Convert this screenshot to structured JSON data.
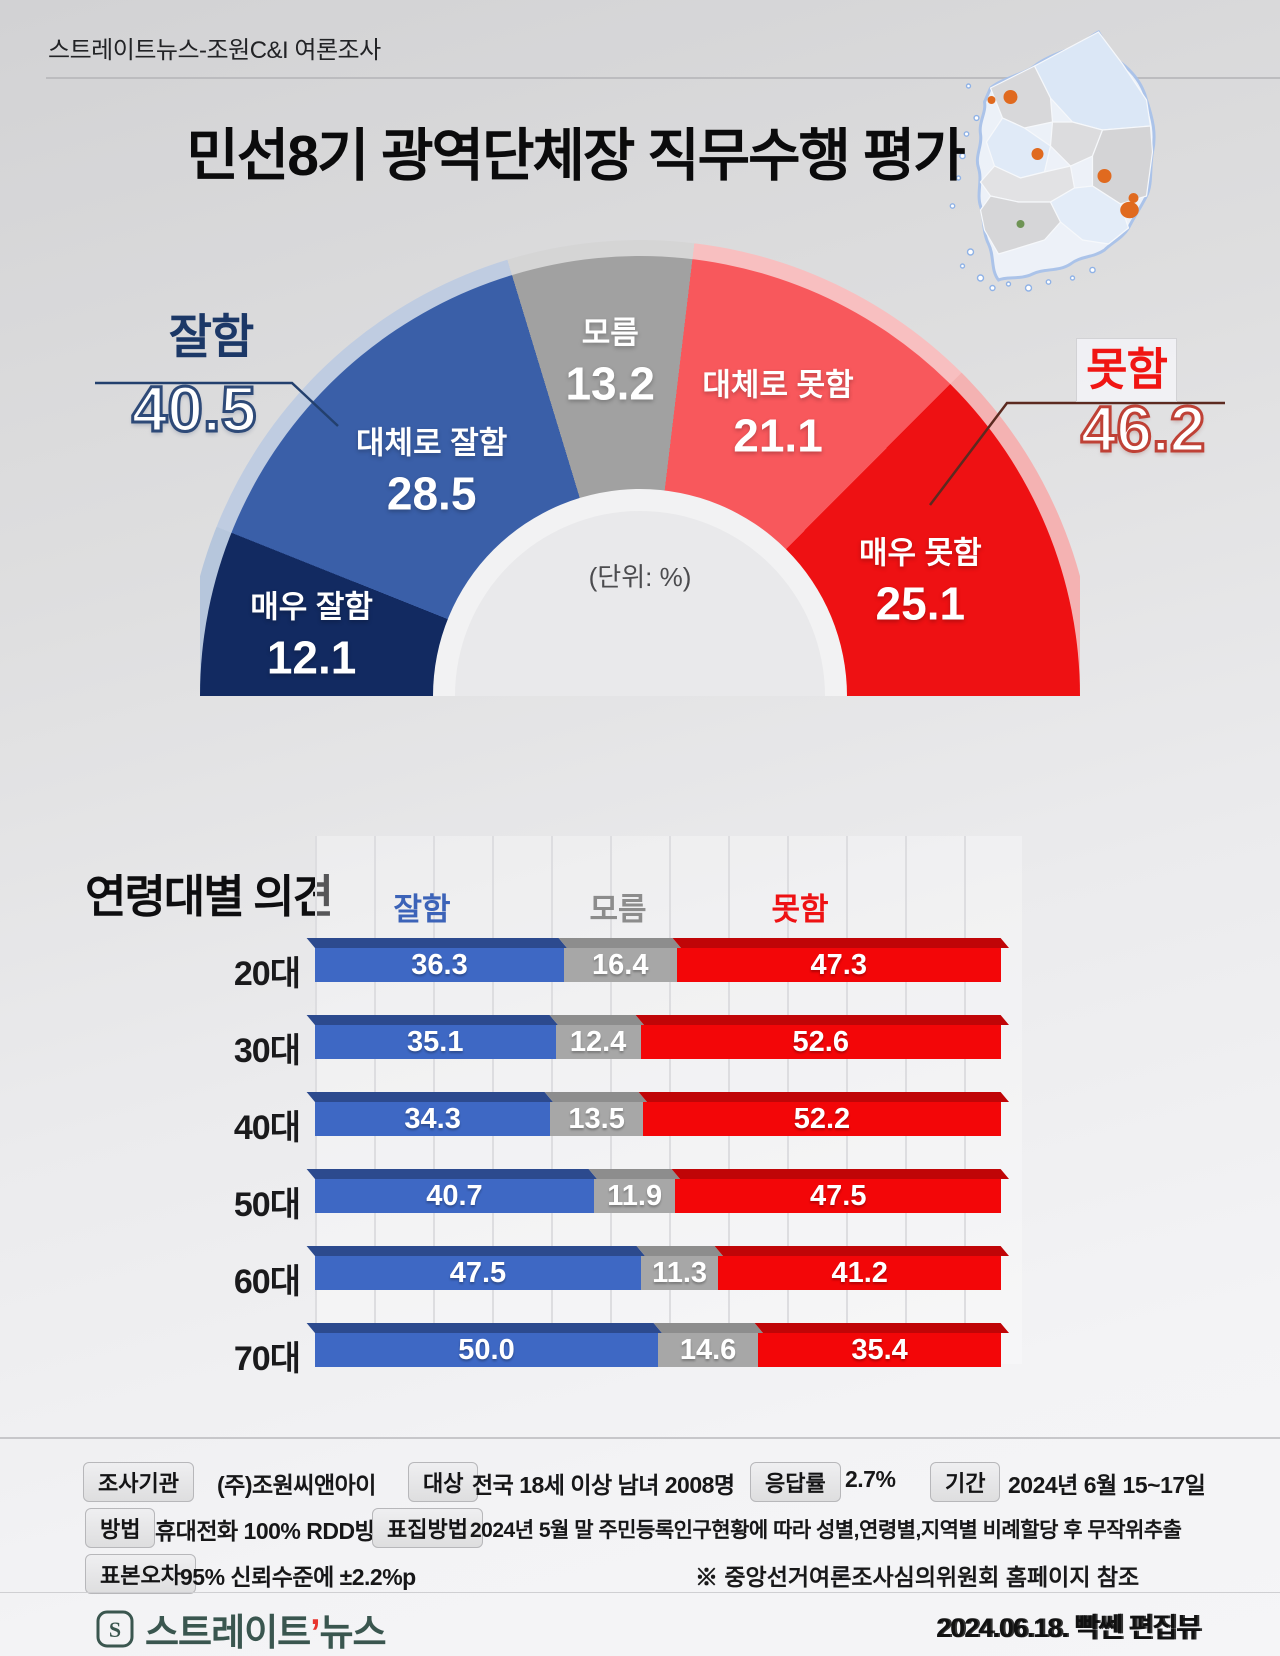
{
  "header": {
    "source_label": "스트레이트뉴스-조원C&I 여론조사",
    "title": "민선8기 광역단체장 직무수행 평가"
  },
  "chart_data": [
    {
      "type": "pie",
      "subtype": "semicircle-donut",
      "title": "민선8기 광역단체장 직무수행 평가",
      "unit": "(단위: %)",
      "labels": [
        "매우 잘함",
        "대체로 잘함",
        "모름",
        "대체로 못함",
        "매우 못함"
      ],
      "values": [
        12.1,
        28.5,
        13.2,
        21.1,
        25.1
      ],
      "colors": [
        "#122a61",
        "#3a5fa8",
        "#a1a1a1",
        "#f8585c",
        "#ee1113"
      ],
      "tints": [
        "#b6c6dc",
        "#bfcce1",
        "#d5d5d5",
        "#f8bfc0",
        "#f4b2b2"
      ],
      "groups": [
        {
          "label": "잘함",
          "value": 40.5,
          "color": "#1c3867"
        },
        {
          "label": "못함",
          "value": 46.2,
          "color": "#f01513"
        }
      ]
    },
    {
      "type": "bar",
      "orientation": "horizontal-stacked",
      "title": "연령대별 의견",
      "categories": [
        "20대",
        "30대",
        "40대",
        "50대",
        "60대",
        "70대"
      ],
      "series": [
        {
          "name": "잘함",
          "color": "#3e68c4",
          "top_color": "#2c4a8e",
          "label_color": "#3c63b8",
          "values": [
            36.3,
            35.1,
            34.3,
            40.7,
            47.5,
            50.0
          ]
        },
        {
          "name": "모름",
          "color": "#a7a7a7",
          "top_color": "#8d8d8d",
          "label_color": "#8c8c8c",
          "values": [
            16.4,
            12.4,
            13.5,
            11.9,
            11.3,
            14.6
          ]
        },
        {
          "name": "못함",
          "color": "#f30608",
          "top_color": "#c00507",
          "label_color": "#ee1113",
          "values": [
            47.3,
            52.6,
            52.2,
            47.5,
            41.2,
            35.4
          ]
        }
      ],
      "xlim": [
        0,
        100
      ],
      "unit": "%"
    }
  ],
  "footer": {
    "fields": [
      {
        "label": "조사기관",
        "value": "(주)조원씨앤아이"
      },
      {
        "label": "대상",
        "value": "전국 18세 이상 남녀 2008명"
      },
      {
        "label": "응답률",
        "value": "2.7%"
      },
      {
        "label": "기간",
        "value": "2024년  6월 15~17일"
      },
      {
        "label": "방법",
        "value": "휴대전화 100% RDD방식"
      },
      {
        "label": "표집방법",
        "value": "2024년 5월 말 주민등록인구현황에 따라 성별,연령별,지역별 비례할당 후 무작위추출"
      },
      {
        "label": "표본오차",
        "value": "95% 신뢰수준에 ±2.2%p"
      }
    ],
    "note": "※ 중앙선거여론조사심의위원회 홈페이지 참조",
    "credit": "2024.06.18. 빡쎈 편집뷰"
  },
  "logo": {
    "text": "스트레이트",
    "mark": "’",
    "suffix": "뉴스"
  }
}
